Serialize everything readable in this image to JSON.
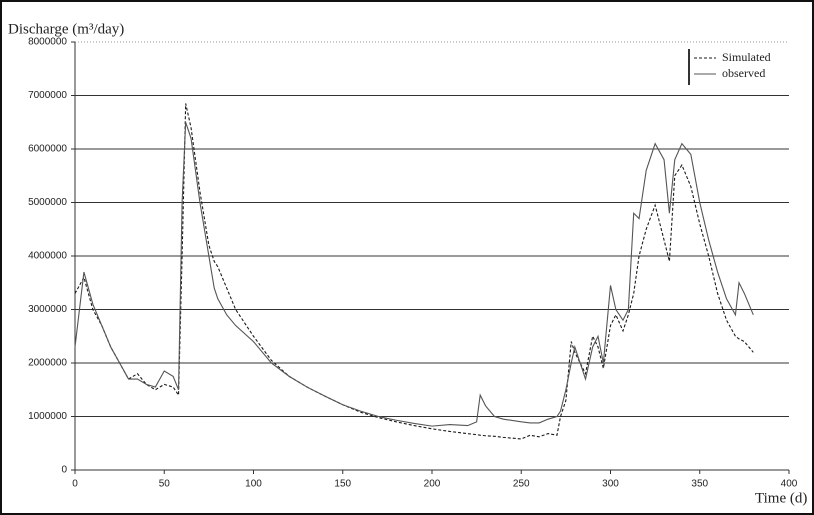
{
  "chart_data": {
    "type": "line",
    "y_label": "Discharge (m³/day)",
    "x_label": "Time (d)",
    "xlim": [
      0,
      400
    ],
    "xticks": [
      0,
      50,
      100,
      150,
      200,
      250,
      300,
      350,
      400
    ],
    "ylim": [
      0,
      8000000
    ],
    "yticks": [
      0,
      1000000,
      2000000,
      3000000,
      4000000,
      5000000,
      6000000,
      7000000,
      8000000
    ],
    "grid": true,
    "legend": "top-right",
    "x": [
      0,
      5,
      10,
      15,
      20,
      25,
      30,
      35,
      40,
      45,
      50,
      55,
      58,
      60,
      62,
      65,
      70,
      75,
      78,
      80,
      85,
      90,
      100,
      110,
      120,
      130,
      140,
      150,
      160,
      170,
      180,
      190,
      200,
      210,
      220,
      225,
      227,
      230,
      235,
      240,
      250,
      255,
      260,
      265,
      270,
      272,
      275,
      278,
      280,
      283,
      286,
      290,
      293,
      296,
      300,
      303,
      307,
      310,
      313,
      316,
      320,
      325,
      330,
      333,
      336,
      340,
      345,
      350,
      355,
      360,
      365,
      370,
      372,
      375,
      380
    ],
    "series": [
      {
        "name": "Simulated",
        "color": "#1a1a1a",
        "dash": "3,2",
        "values": [
          3300000,
          3600000,
          3000000,
          2700000,
          2300000,
          2000000,
          1700000,
          1800000,
          1600000,
          1500000,
          1600000,
          1550000,
          1400000,
          4000000,
          6850000,
          6400000,
          5200000,
          4200000,
          3900000,
          3800000,
          3400000,
          3000000,
          2500000,
          2050000,
          1750000,
          1550000,
          1380000,
          1220000,
          1080000,
          980000,
          900000,
          830000,
          770000,
          720000,
          680000,
          660000,
          650000,
          640000,
          630000,
          610000,
          580000,
          650000,
          620000,
          680000,
          650000,
          1000000,
          1300000,
          2400000,
          2200000,
          2000000,
          1800000,
          2500000,
          2300000,
          1900000,
          2700000,
          2900000,
          2600000,
          2900000,
          3300000,
          4000000,
          4500000,
          4950000,
          4300000,
          3900000,
          5500000,
          5700000,
          5300000,
          4600000,
          4000000,
          3300000,
          2800000,
          2500000,
          2450000,
          2400000,
          2200000
        ]
      },
      {
        "name": "observed",
        "color": "#555555",
        "dash": "none",
        "values": [
          2300000,
          3700000,
          3100000,
          2700000,
          2300000,
          2000000,
          1700000,
          1700000,
          1600000,
          1550000,
          1850000,
          1750000,
          1500000,
          5000000,
          6500000,
          6200000,
          5000000,
          4000000,
          3400000,
          3200000,
          2900000,
          2700000,
          2400000,
          2000000,
          1750000,
          1550000,
          1380000,
          1220000,
          1100000,
          1000000,
          930000,
          870000,
          820000,
          850000,
          830000,
          900000,
          1400000,
          1200000,
          1000000,
          950000,
          900000,
          880000,
          880000,
          950000,
          1000000,
          1100000,
          1500000,
          2000000,
          2300000,
          2000000,
          1700000,
          2300000,
          2500000,
          2000000,
          3450000,
          3000000,
          2800000,
          3000000,
          4800000,
          4700000,
          5600000,
          6100000,
          5800000,
          4800000,
          5800000,
          6100000,
          5900000,
          5000000,
          4300000,
          3700000,
          3200000,
          2900000,
          3500000,
          3300000,
          2900000
        ]
      }
    ]
  }
}
